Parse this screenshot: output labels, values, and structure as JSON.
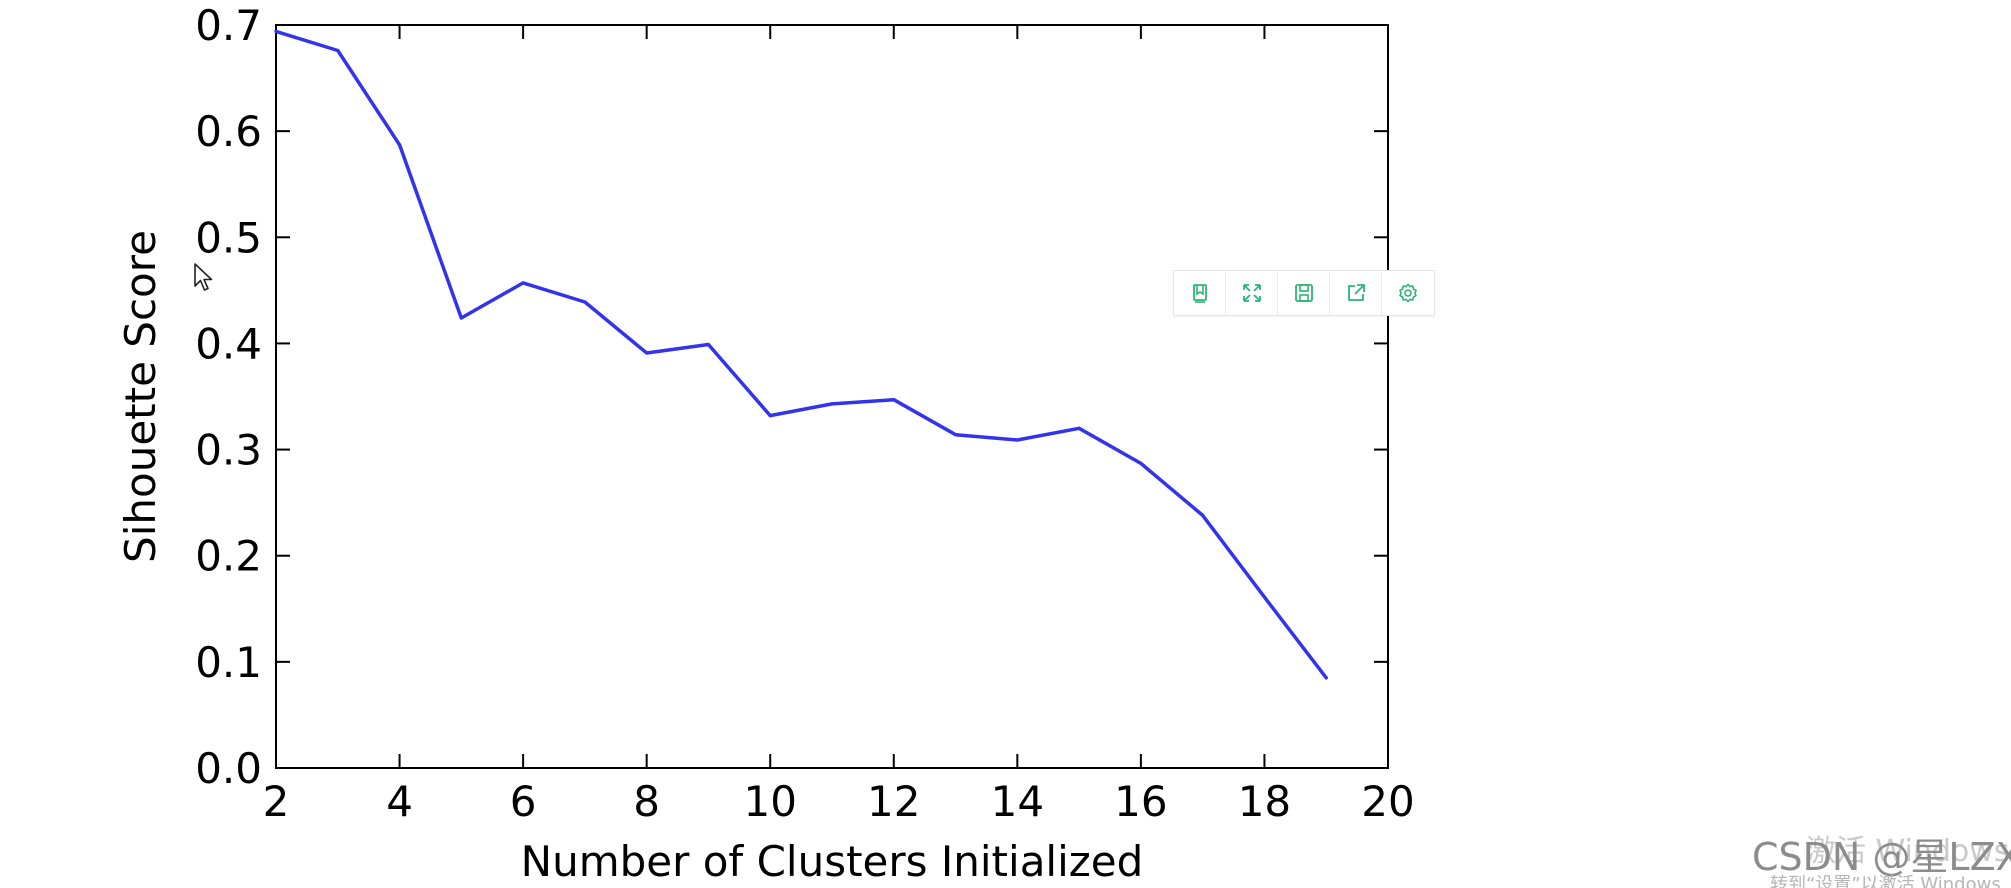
{
  "chart_data": {
    "type": "line",
    "title": "",
    "xlabel": "Number of Clusters Initialized",
    "ylabel": "Sihouette Score",
    "xlim": [
      2,
      20
    ],
    "ylim": [
      0.0,
      0.7
    ],
    "x_ticks": [
      "2",
      "4",
      "6",
      "8",
      "10",
      "12",
      "14",
      "16",
      "18",
      "20"
    ],
    "y_ticks": [
      "0.0",
      "0.1",
      "0.2",
      "0.3",
      "0.4",
      "0.5",
      "0.6",
      "0.7"
    ],
    "grid": false,
    "series": [
      {
        "color": "#3333ee",
        "x": [
          2,
          3,
          4,
          5,
          6,
          7,
          8,
          9,
          10,
          11,
          12,
          13,
          14,
          15,
          16,
          17,
          18,
          19
        ],
        "y": [
          0.694,
          0.676,
          0.587,
          0.424,
          0.457,
          0.439,
          0.391,
          0.399,
          0.332,
          0.343,
          0.347,
          0.314,
          0.309,
          0.32,
          0.287,
          0.238,
          0.161,
          0.085
        ]
      }
    ]
  },
  "toolbar": {
    "accent_color": "#2bb673",
    "buttons": [
      {
        "name": "bookmark-icon"
      },
      {
        "name": "fullscreen-icon"
      },
      {
        "name": "save-icon"
      },
      {
        "name": "share-icon"
      },
      {
        "name": "settings-icon"
      }
    ]
  },
  "watermark": {
    "text": "CSDN @星LZX",
    "overlay": "激活 Windows",
    "overlay_sub": "转到“设置”以激活 Windows"
  }
}
